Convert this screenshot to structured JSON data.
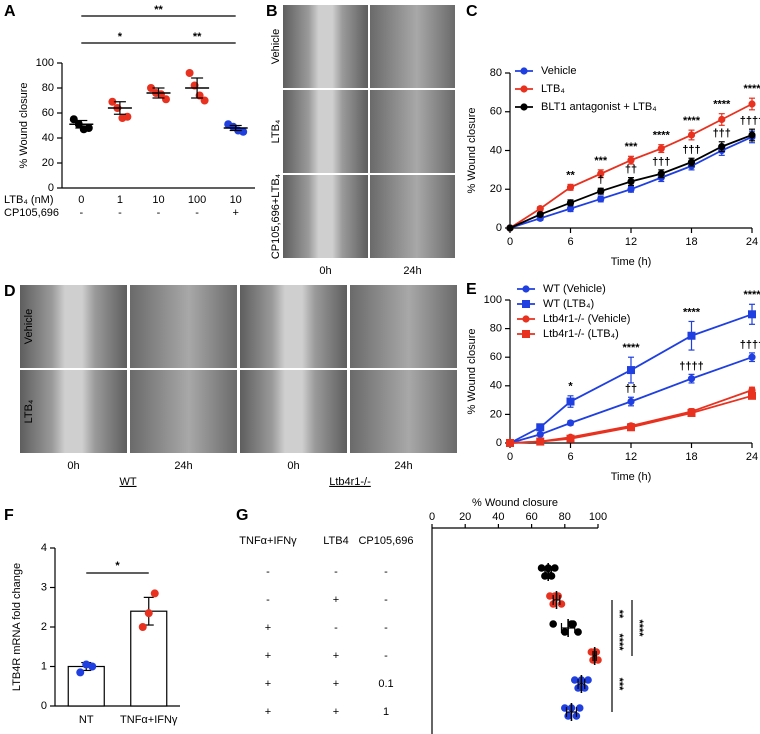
{
  "chart_data": [
    {
      "panel": "A",
      "type": "dot",
      "ylabel": "% Wound closure",
      "ylim": [
        0,
        100
      ],
      "yticks": [
        0,
        20,
        40,
        60,
        80,
        100
      ],
      "row_labels": [
        "LTB₄ (nM)",
        "CP105,696"
      ],
      "categories": [
        "0",
        "1",
        "10",
        "100",
        "10"
      ],
      "categories2": [
        "-",
        "-",
        "-",
        "-",
        "+"
      ],
      "colors": [
        "#000000",
        "#e8311f",
        "#e8311f",
        "#e8311f",
        "#1f3fe0"
      ],
      "points": [
        [
          55,
          51,
          47,
          48
        ],
        [
          69,
          64,
          56,
          57
        ],
        [
          80,
          76,
          75,
          71
        ],
        [
          92,
          82,
          74,
          70
        ],
        [
          51,
          49,
          46,
          45
        ]
      ],
      "means": [
        51,
        64,
        76,
        80,
        48
      ],
      "errors": [
        3,
        5,
        4,
        8,
        2
      ],
      "annotations": [
        "**",
        "*",
        "**"
      ]
    },
    {
      "panel": "C",
      "type": "line",
      "xlabel": "Time (h)",
      "ylabel": "% Wound closure",
      "x": [
        0,
        3,
        6,
        9,
        12,
        15,
        18,
        21,
        24
      ],
      "xlim": [
        0,
        24
      ],
      "xticks": [
        0,
        6,
        12,
        18,
        24
      ],
      "ylim": [
        0,
        80
      ],
      "yticks": [
        0,
        20,
        40,
        60,
        80
      ],
      "series": [
        {
          "name": "Vehicle",
          "color": "#1f3fe0",
          "marker": "circle",
          "values": [
            0,
            5,
            10,
            15,
            20,
            26,
            32,
            40,
            47
          ],
          "errors": [
            0,
            1,
            1.5,
            1.5,
            1.5,
            2,
            2,
            2.5,
            3
          ]
        },
        {
          "name": "LTB₄",
          "color": "#e8311f",
          "marker": "circle",
          "values": [
            0,
            10,
            21,
            28,
            35,
            41,
            48,
            56,
            64
          ],
          "errors": [
            0,
            1,
            1.5,
            2,
            2,
            2,
            2.5,
            3,
            3
          ]
        },
        {
          "name": "BLT1 antagonist + LTB₄",
          "color": "#000000",
          "marker": "circle",
          "values": [
            0,
            7,
            13,
            19,
            24,
            28,
            34,
            42,
            48
          ],
          "errors": [
            0,
            1,
            1.5,
            1.5,
            2,
            2,
            2,
            2.5,
            3
          ]
        }
      ],
      "stars": [
        {
          "x": 6,
          "text": "**"
        },
        {
          "x": 9,
          "text": "***"
        },
        {
          "x": 12,
          "text": "***"
        },
        {
          "x": 15,
          "text": "****"
        },
        {
          "x": 18,
          "text": "****"
        },
        {
          "x": 21,
          "text": "****"
        },
        {
          "x": 24,
          "text": "****"
        }
      ],
      "daggers": [
        {
          "x": 9,
          "text": "†"
        },
        {
          "x": 12,
          "text": "††"
        },
        {
          "x": 15,
          "text": "†††"
        },
        {
          "x": 18,
          "text": "†††"
        },
        {
          "x": 21,
          "text": "†††"
        },
        {
          "x": 24,
          "text": "††††"
        }
      ]
    },
    {
      "panel": "E",
      "type": "line",
      "xlabel": "Time (h)",
      "ylabel": "% Wound closure",
      "x": [
        0,
        3,
        6,
        12,
        18,
        24
      ],
      "xlim": [
        0,
        24
      ],
      "xticks": [
        0,
        6,
        12,
        18,
        24
      ],
      "ylim": [
        0,
        100
      ],
      "yticks": [
        0,
        20,
        40,
        60,
        80,
        100
      ],
      "series": [
        {
          "name": "WT (Vehicle)",
          "color": "#1f3fe0",
          "marker": "circle",
          "values": [
            0,
            6,
            14,
            29,
            45,
            60
          ],
          "errors": [
            0,
            1,
            1.5,
            3,
            3,
            3
          ]
        },
        {
          "name": "WT (LTB₄)",
          "color": "#1f3fe0",
          "marker": "square",
          "values": [
            0,
            11,
            29,
            51,
            75,
            90
          ],
          "errors": [
            0,
            2,
            4,
            9,
            10,
            7
          ]
        },
        {
          "name": "Ltb4r1-/- (Vehicle)",
          "color": "#e8311f",
          "marker": "circle",
          "values": [
            0,
            1,
            4,
            12,
            22,
            37
          ],
          "errors": [
            0,
            0.5,
            1,
            1.5,
            2,
            2
          ]
        },
        {
          "name": "Ltb4r1-/- (LTB₄)",
          "color": "#e8311f",
          "marker": "square",
          "values": [
            0,
            1,
            3,
            11,
            21,
            33
          ],
          "errors": [
            0,
            0.5,
            1,
            1.5,
            2,
            2
          ]
        }
      ],
      "stars": [
        {
          "x": 6,
          "text": "*"
        },
        {
          "x": 12,
          "text": "****"
        },
        {
          "x": 18,
          "text": "****"
        },
        {
          "x": 24,
          "text": "****"
        }
      ],
      "daggers": [
        {
          "x": 12,
          "text": "††"
        },
        {
          "x": 18,
          "text": "††††"
        },
        {
          "x": 24,
          "text": "††††"
        }
      ]
    },
    {
      "panel": "F",
      "type": "bar",
      "ylabel": "LTB4R mRNA fold change",
      "ylim": [
        0,
        4
      ],
      "yticks": [
        0,
        1,
        2,
        3,
        4
      ],
      "categories": [
        "NT",
        "TNFα+IFNγ"
      ],
      "values": [
        1.0,
        2.4
      ],
      "errors": [
        0.1,
        0.35
      ],
      "colors": [
        "#1f3fe0",
        "#e8311f"
      ],
      "points": [
        [
          0.85,
          1.05,
          1.0
        ],
        [
          2.0,
          2.35,
          2.85
        ]
      ],
      "annotations": [
        "*"
      ]
    },
    {
      "panel": "G",
      "type": "hdot",
      "xlabel": "% Wound closure",
      "xlim": [
        0,
        100
      ],
      "xticks": [
        0,
        20,
        40,
        60,
        80,
        100
      ],
      "columns": [
        "TNFα+IFNγ",
        "LTB4",
        "CP105,696"
      ],
      "rows": [
        [
          "-",
          "-",
          "-"
        ],
        [
          "-",
          "+",
          "-"
        ],
        [
          "+",
          "-",
          "-"
        ],
        [
          "+",
          "+",
          "-"
        ],
        [
          "+",
          "+",
          "0.1"
        ],
        [
          "+",
          "+",
          "1"
        ]
      ],
      "colors": [
        "#000000",
        "#e8311f",
        "#000000",
        "#e8311f",
        "#1f3fe0",
        "#1f3fe0"
      ],
      "points": [
        [
          66,
          68,
          70,
          72,
          74
        ],
        [
          71,
          73,
          76,
          78,
          74
        ],
        [
          73,
          80,
          84,
          88,
          85
        ],
        [
          96,
          97,
          99,
          100,
          98
        ],
        [
          86,
          88,
          90,
          92,
          94
        ],
        [
          80,
          82,
          84,
          87,
          89
        ]
      ],
      "means": [
        70,
        75,
        82,
        98,
        90,
        84
      ],
      "errors": [
        2,
        2,
        4,
        1,
        2,
        3
      ],
      "annotations": [
        "**",
        "****",
        "****",
        "***"
      ]
    }
  ],
  "image_panels": [
    {
      "panel": "B",
      "row_labels": [
        "Vehicle",
        "LTB₄",
        "CP105,696+LTB₄"
      ],
      "column_labels": [
        "0h",
        "24h"
      ]
    },
    {
      "panel": "D",
      "row_labels": [
        "Vehicle",
        "LTB₄"
      ],
      "column_labels": [
        "0h",
        "24h",
        "0h",
        "24h"
      ],
      "group_labels": [
        "WT",
        "Ltb4r1-/-"
      ]
    }
  ]
}
